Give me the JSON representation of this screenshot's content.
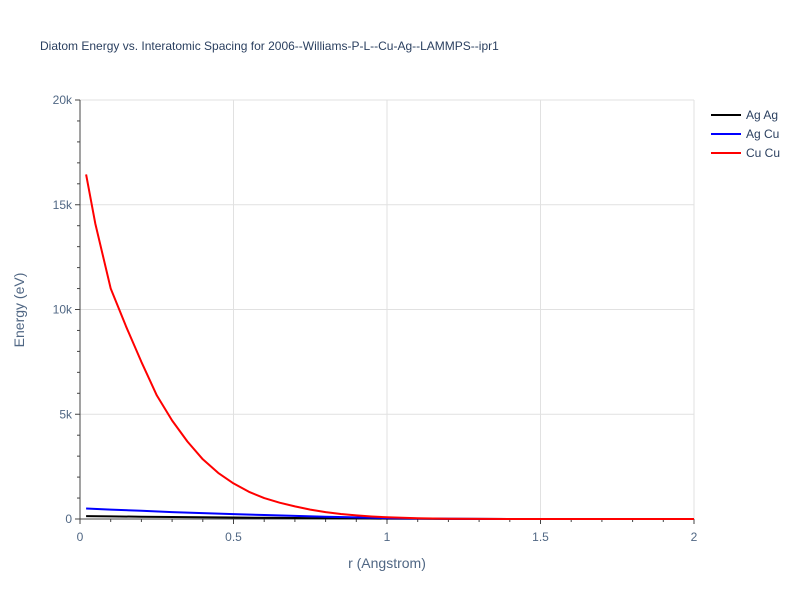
{
  "chart_data": {
    "type": "line",
    "title": "Diatom Energy vs. Interatomic Spacing for 2006--Williams-P-L--Cu-Ag--LAMMPS--ipr1",
    "xlabel": "r (Angstrom)",
    "ylabel": "Energy (eV)",
    "xlim": [
      0,
      2
    ],
    "ylim": [
      0,
      20000
    ],
    "x_ticks": [
      {
        "value": 0,
        "label": "0"
      },
      {
        "value": 0.5,
        "label": "0.5"
      },
      {
        "value": 1,
        "label": "1"
      },
      {
        "value": 1.5,
        "label": "1.5"
      },
      {
        "value": 2,
        "label": "2"
      }
    ],
    "y_ticks": [
      {
        "value": 0,
        "label": "0"
      },
      {
        "value": 5000,
        "label": "5k"
      },
      {
        "value": 10000,
        "label": "10k"
      },
      {
        "value": 15000,
        "label": "15k"
      },
      {
        "value": 20000,
        "label": "20k"
      }
    ],
    "grid": true,
    "legend_position": "top-right",
    "series": [
      {
        "name": "Ag Ag",
        "color": "#000000",
        "x": [
          0.02,
          0.1,
          0.2,
          0.3,
          0.4,
          0.5,
          0.6,
          0.7,
          0.8,
          0.9,
          1.0,
          1.1,
          1.2,
          1.4,
          1.6,
          1.8,
          2.0
        ],
        "y": [
          140,
          125,
          110,
          95,
          82,
          70,
          58,
          47,
          37,
          28,
          18,
          10,
          5,
          1,
          0,
          0,
          0
        ]
      },
      {
        "name": "Ag Cu",
        "color": "#0000ff",
        "x": [
          0.02,
          0.1,
          0.2,
          0.3,
          0.4,
          0.5,
          0.6,
          0.7,
          0.8,
          0.9,
          1.0,
          1.1,
          1.2,
          1.4,
          1.6,
          1.8,
          2.0
        ],
        "y": [
          500,
          450,
          390,
          330,
          280,
          235,
          190,
          150,
          110,
          75,
          45,
          22,
          10,
          2,
          0,
          0,
          0
        ]
      },
      {
        "name": "Cu Cu",
        "color": "#ff0000",
        "x": [
          0.02,
          0.05,
          0.1,
          0.15,
          0.2,
          0.25,
          0.3,
          0.35,
          0.4,
          0.45,
          0.5,
          0.55,
          0.6,
          0.65,
          0.7,
          0.75,
          0.8,
          0.85,
          0.9,
          0.95,
          1.0,
          1.1,
          1.2,
          1.3,
          1.4,
          1.6,
          1.8,
          2.0
        ],
        "y": [
          16450,
          14100,
          11000,
          9200,
          7500,
          5900,
          4700,
          3700,
          2850,
          2200,
          1700,
          1300,
          1000,
          780,
          600,
          450,
          330,
          240,
          170,
          120,
          80,
          35,
          15,
          6,
          2,
          0,
          0,
          0
        ]
      }
    ]
  }
}
